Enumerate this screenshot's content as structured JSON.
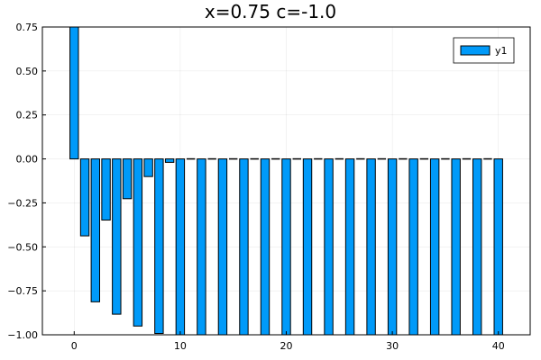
{
  "chart_data": {
    "type": "bar",
    "title": "x=0.75 c=-1.0",
    "xlabel": "",
    "ylabel": "",
    "xlim": [
      -3,
      43
    ],
    "ylim": [
      -1.0,
      0.75
    ],
    "xticks": [
      0,
      10,
      20,
      30,
      40
    ],
    "xtick_labels": [
      "0",
      "10",
      "20",
      "30",
      "40"
    ],
    "yticks": [
      -1.0,
      -0.75,
      -0.5,
      -0.25,
      0.0,
      0.25,
      0.5,
      0.75
    ],
    "ytick_labels": [
      "−1.00",
      "−0.75",
      "−0.50",
      "−0.25",
      "0.00",
      "0.25",
      "0.50",
      "0.75"
    ],
    "grid": true,
    "legend": "top-right",
    "series": [
      {
        "name": "y1",
        "color": "#009AF9",
        "x": [
          0,
          1,
          2,
          3,
          4,
          5,
          6,
          7,
          8,
          9,
          10,
          12,
          14,
          16,
          18,
          20,
          22,
          24,
          26,
          28,
          30,
          32,
          34,
          36,
          38,
          40
        ],
        "values": [
          0.75,
          -0.4375,
          -0.8125,
          -0.3477,
          -0.8828,
          -0.2263,
          -0.9502,
          -0.1003,
          -0.9925,
          -0.0196,
          -1.0,
          -1.0,
          -1.0,
          -1.0,
          -1.0,
          -1.0,
          -1.0,
          -1.0,
          -1.0,
          -1.0,
          -1.0,
          -1.0,
          -1.0,
          -1.0,
          -1.0,
          -1.0
        ]
      }
    ],
    "zero_values_at_odd_x_from": 11,
    "zero_values_at_odd_x_to": 39
  }
}
